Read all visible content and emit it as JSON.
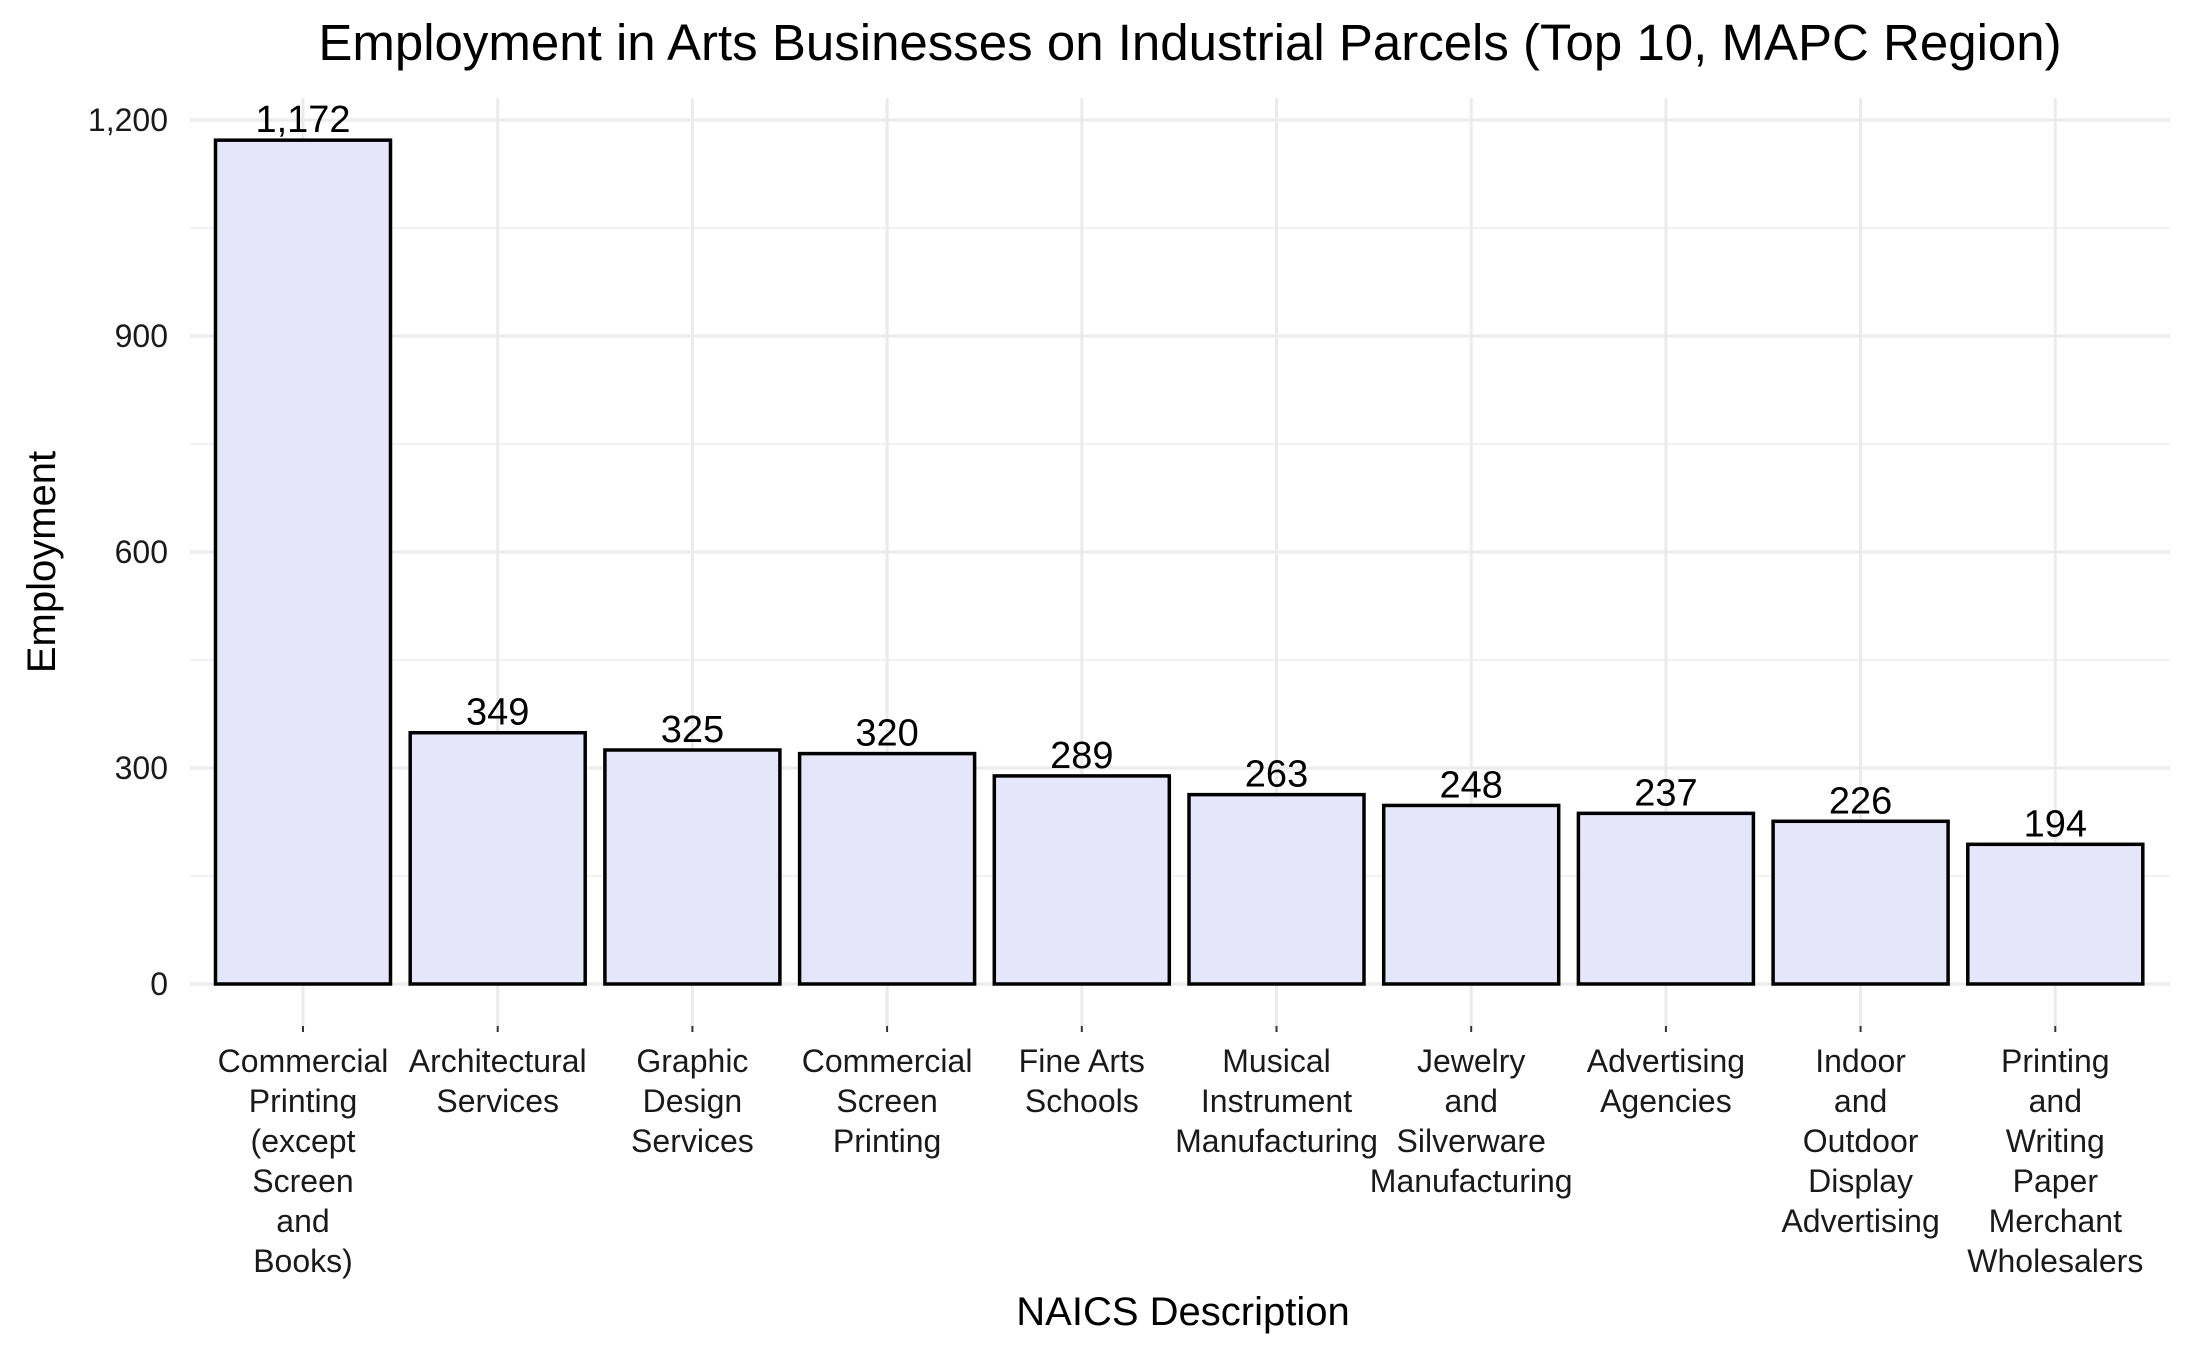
{
  "chart_data": {
    "type": "bar",
    "title": "Employment in Arts Businesses on Industrial Parcels (Top 10, MAPC Region)",
    "xlabel": "NAICS Description",
    "ylabel": "Employment",
    "ylim": [
      0,
      1250
    ],
    "yticks": [
      0,
      300,
      600,
      900,
      1200
    ],
    "ytick_labels": [
      "0",
      "300",
      "600",
      "900",
      "1,200"
    ],
    "grid": true,
    "legend": "none",
    "bar_fill": "#e6e6fa",
    "bar_stroke": "#000000",
    "categories": [
      [
        "Commercial",
        "Printing",
        "(except",
        "Screen",
        "and",
        "Books)"
      ],
      [
        "Architectural",
        "Services"
      ],
      [
        "Graphic",
        "Design",
        "Services"
      ],
      [
        "Commercial",
        "Screen",
        "Printing"
      ],
      [
        "Fine Arts",
        "Schools"
      ],
      [
        "Musical",
        "Instrument",
        "Manufacturing"
      ],
      [
        "Jewelry",
        "and",
        "Silverware",
        "Manufacturing"
      ],
      [
        "Advertising",
        "Agencies"
      ],
      [
        "Indoor",
        "and",
        "Outdoor",
        "Display",
        "Advertising"
      ],
      [
        "Printing",
        "and",
        "Writing",
        "Paper",
        "Merchant",
        "Wholesalers"
      ]
    ],
    "values": [
      1172,
      349,
      325,
      320,
      289,
      263,
      248,
      237,
      226,
      194
    ],
    "value_labels": [
      "1,172",
      "349",
      "325",
      "320",
      "289",
      "263",
      "248",
      "237",
      "226",
      "194"
    ]
  }
}
